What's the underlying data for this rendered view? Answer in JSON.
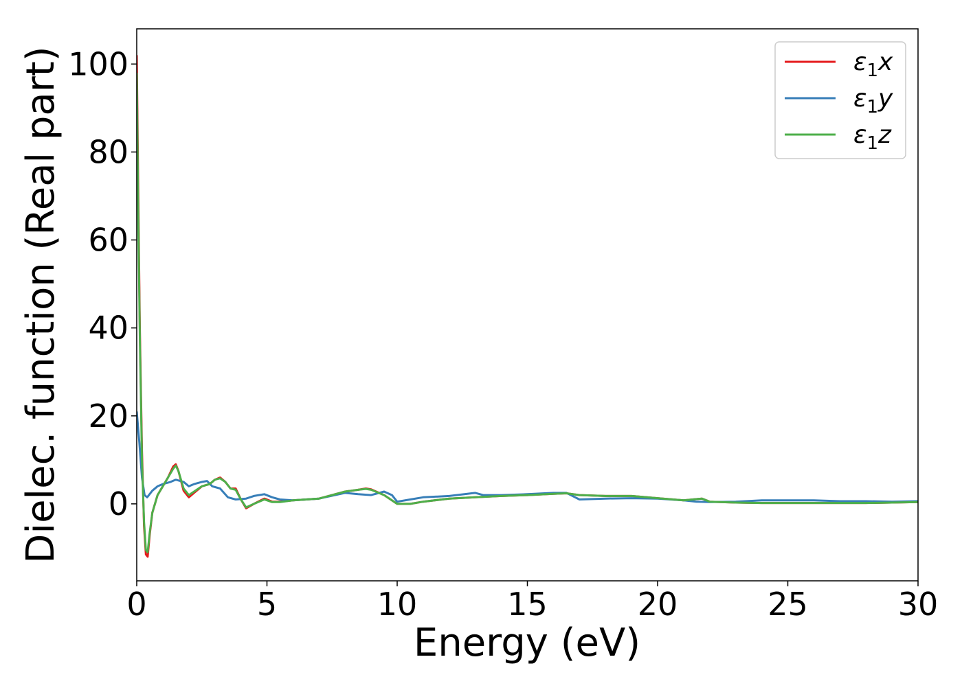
{
  "chart_data": {
    "type": "line",
    "xlabel": "Energy (eV)",
    "ylabel": "Dielec. function (Real part)",
    "xlim": [
      0,
      30
    ],
    "ylim": [
      -17.5,
      108
    ],
    "xticks": [
      0,
      5,
      10,
      15,
      20,
      25,
      30
    ],
    "yticks": [
      0,
      20,
      40,
      60,
      80,
      100
    ],
    "xtick_labels": [
      "0",
      "5",
      "10",
      "15",
      "20",
      "25",
      "30"
    ],
    "ytick_labels": [
      "0",
      "20",
      "40",
      "60",
      "80",
      "100"
    ],
    "grid": false,
    "legend_position": "top-right",
    "series": [
      {
        "name": "ε1x",
        "name_parts": {
          "base": "ε",
          "sub": "1",
          "var": "x"
        },
        "color": "#e41a1c",
        "points": [
          [
            0.0,
            102
          ],
          [
            0.05,
            75
          ],
          [
            0.12,
            40
          ],
          [
            0.2,
            12
          ],
          [
            0.28,
            -5
          ],
          [
            0.35,
            -11.5
          ],
          [
            0.42,
            -12
          ],
          [
            0.5,
            -7
          ],
          [
            0.6,
            -2
          ],
          [
            0.8,
            2
          ],
          [
            1.0,
            4
          ],
          [
            1.2,
            6
          ],
          [
            1.4,
            8.5
          ],
          [
            1.5,
            9
          ],
          [
            1.6,
            7.5
          ],
          [
            1.8,
            3
          ],
          [
            2.0,
            1.5
          ],
          [
            2.2,
            2.5
          ],
          [
            2.5,
            4
          ],
          [
            2.8,
            4.5
          ],
          [
            3.0,
            5.5
          ],
          [
            3.2,
            6
          ],
          [
            3.4,
            5
          ],
          [
            3.6,
            3.5
          ],
          [
            3.8,
            3.5
          ],
          [
            4.0,
            1
          ],
          [
            4.2,
            -1
          ],
          [
            4.5,
            0
          ],
          [
            4.9,
            1.2
          ],
          [
            5.2,
            0.5
          ],
          [
            5.5,
            0.5
          ],
          [
            6.0,
            0.8
          ],
          [
            7.0,
            1.2
          ],
          [
            8.0,
            2.8
          ],
          [
            8.5,
            3.2
          ],
          [
            8.8,
            3.5
          ],
          [
            9.0,
            3.3
          ],
          [
            9.5,
            2
          ],
          [
            10.0,
            0
          ],
          [
            10.5,
            0
          ],
          [
            11.0,
            0.5
          ],
          [
            12.0,
            1.2
          ],
          [
            13.0,
            1.5
          ],
          [
            14.0,
            1.8
          ],
          [
            15.0,
            2
          ],
          [
            16.0,
            2.3
          ],
          [
            16.5,
            2.4
          ],
          [
            17.0,
            2
          ],
          [
            18.0,
            1.8
          ],
          [
            19.0,
            1.8
          ],
          [
            20.0,
            1.3
          ],
          [
            21.0,
            0.8
          ],
          [
            21.7,
            1.2
          ],
          [
            22.0,
            0.5
          ],
          [
            23.0,
            0.3
          ],
          [
            24.0,
            0.2
          ],
          [
            25.0,
            0.2
          ],
          [
            26.0,
            0.2
          ],
          [
            27.0,
            0.2
          ],
          [
            28.0,
            0.2
          ],
          [
            29.0,
            0.3
          ],
          [
            30.0,
            0.4
          ]
        ]
      },
      {
        "name": "ε1y",
        "name_parts": {
          "base": "ε",
          "sub": "1",
          "var": "y"
        },
        "color": "#377eb8",
        "points": [
          [
            0.0,
            21
          ],
          [
            0.1,
            14
          ],
          [
            0.2,
            6
          ],
          [
            0.3,
            2
          ],
          [
            0.4,
            1.5
          ],
          [
            0.6,
            3
          ],
          [
            0.8,
            4
          ],
          [
            1.0,
            4.5
          ],
          [
            1.3,
            5
          ],
          [
            1.5,
            5.5
          ],
          [
            1.8,
            5
          ],
          [
            2.0,
            4
          ],
          [
            2.2,
            4.5
          ],
          [
            2.5,
            5
          ],
          [
            2.7,
            5.2
          ],
          [
            2.9,
            4
          ],
          [
            3.2,
            3.5
          ],
          [
            3.5,
            1.5
          ],
          [
            3.8,
            1
          ],
          [
            4.2,
            1.2
          ],
          [
            4.5,
            1.8
          ],
          [
            4.9,
            2.2
          ],
          [
            5.2,
            1.5
          ],
          [
            5.5,
            1
          ],
          [
            6.0,
            0.8
          ],
          [
            7.0,
            1.2
          ],
          [
            8.0,
            2.5
          ],
          [
            8.5,
            2.2
          ],
          [
            9.0,
            2
          ],
          [
            9.5,
            2.8
          ],
          [
            9.8,
            2
          ],
          [
            10.0,
            0.5
          ],
          [
            10.5,
            1
          ],
          [
            11.0,
            1.5
          ],
          [
            12.0,
            1.8
          ],
          [
            13.0,
            2.5
          ],
          [
            13.3,
            2
          ],
          [
            14.0,
            2
          ],
          [
            15.0,
            2.2
          ],
          [
            16.0,
            2.5
          ],
          [
            16.5,
            2.5
          ],
          [
            17.0,
            1
          ],
          [
            18.0,
            1.2
          ],
          [
            19.0,
            1.3
          ],
          [
            20.0,
            1.2
          ],
          [
            21.0,
            0.8
          ],
          [
            21.5,
            0.5
          ],
          [
            22.0,
            0.4
          ],
          [
            23.0,
            0.5
          ],
          [
            24.0,
            0.8
          ],
          [
            25.0,
            0.8
          ],
          [
            26.0,
            0.8
          ],
          [
            27.0,
            0.6
          ],
          [
            28.0,
            0.6
          ],
          [
            29.0,
            0.5
          ],
          [
            30.0,
            0.6
          ]
        ]
      },
      {
        "name": "ε1z",
        "name_parts": {
          "base": "ε",
          "sub": "1",
          "var": "z"
        },
        "color": "#4daf4a",
        "points": [
          [
            0.0,
            98
          ],
          [
            0.05,
            70
          ],
          [
            0.12,
            38
          ],
          [
            0.2,
            10
          ],
          [
            0.28,
            -4
          ],
          [
            0.35,
            -10.5
          ],
          [
            0.42,
            -11
          ],
          [
            0.5,
            -6.5
          ],
          [
            0.6,
            -2
          ],
          [
            0.8,
            2
          ],
          [
            1.0,
            4
          ],
          [
            1.2,
            6
          ],
          [
            1.4,
            8
          ],
          [
            1.5,
            8.7
          ],
          [
            1.6,
            7.5
          ],
          [
            1.8,
            3.5
          ],
          [
            2.0,
            2
          ],
          [
            2.2,
            2.8
          ],
          [
            2.5,
            4
          ],
          [
            2.8,
            4.5
          ],
          [
            3.0,
            5.5
          ],
          [
            3.2,
            5.8
          ],
          [
            3.4,
            5
          ],
          [
            3.6,
            3.5
          ],
          [
            3.8,
            3.2
          ],
          [
            4.0,
            1
          ],
          [
            4.2,
            -0.8
          ],
          [
            4.5,
            0
          ],
          [
            4.9,
            1
          ],
          [
            5.2,
            0.4
          ],
          [
            5.5,
            0.4
          ],
          [
            6.0,
            0.8
          ],
          [
            7.0,
            1.2
          ],
          [
            8.0,
            2.8
          ],
          [
            8.5,
            3.2
          ],
          [
            8.8,
            3.4
          ],
          [
            9.0,
            3.2
          ],
          [
            9.5,
            2
          ],
          [
            10.0,
            0
          ],
          [
            10.5,
            0
          ],
          [
            11.0,
            0.5
          ],
          [
            12.0,
            1.2
          ],
          [
            13.0,
            1.5
          ],
          [
            14.0,
            1.8
          ],
          [
            15.0,
            2
          ],
          [
            16.0,
            2.3
          ],
          [
            16.5,
            2.4
          ],
          [
            17.0,
            2
          ],
          [
            18.0,
            1.8
          ],
          [
            19.0,
            1.8
          ],
          [
            20.0,
            1.3
          ],
          [
            21.0,
            0.8
          ],
          [
            21.7,
            1.2
          ],
          [
            22.0,
            0.5
          ],
          [
            23.0,
            0.3
          ],
          [
            24.0,
            0.2
          ],
          [
            25.0,
            0.2
          ],
          [
            26.0,
            0.2
          ],
          [
            27.0,
            0.2
          ],
          [
            28.0,
            0.2
          ],
          [
            29.0,
            0.3
          ],
          [
            30.0,
            0.4
          ]
        ]
      }
    ]
  }
}
